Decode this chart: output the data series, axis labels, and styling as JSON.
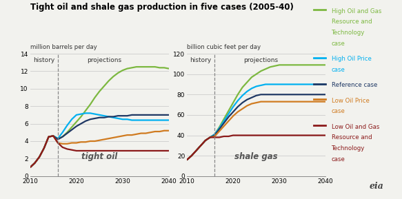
{
  "title": "Tight oil and shale gas production in five cases (2005-40)",
  "left_ylabel": "million barrels per day",
  "right_ylabel": "billion cubic feet per day",
  "left_label": "tight oil",
  "right_label": "shale gas",
  "history_label": "history",
  "projections_label": "projections",
  "history_year": 2016,
  "colors": [
    "#7cb840",
    "#00b0f0",
    "#1f3864",
    "#d07b20",
    "#8b1a1a"
  ],
  "tight_oil": {
    "years": [
      2010,
      2011,
      2012,
      2013,
      2014,
      2015,
      2016,
      2017,
      2018,
      2019,
      2020,
      2021,
      2022,
      2023,
      2024,
      2025,
      2026,
      2027,
      2028,
      2029,
      2030,
      2031,
      2032,
      2033,
      2034,
      2035,
      2036,
      2037,
      2038,
      2039,
      2040
    ],
    "series": {
      "high_og_rt": [
        1.0,
        1.5,
        2.2,
        3.2,
        4.5,
        4.6,
        4.3,
        4.5,
        5.0,
        5.6,
        6.2,
        6.8,
        7.5,
        8.2,
        9.0,
        9.7,
        10.3,
        10.9,
        11.4,
        11.8,
        12.1,
        12.3,
        12.4,
        12.5,
        12.5,
        12.5,
        12.5,
        12.5,
        12.4,
        12.4,
        12.3
      ],
      "high_oil_price": [
        1.0,
        1.5,
        2.2,
        3.2,
        4.5,
        4.6,
        4.3,
        5.0,
        5.8,
        6.5,
        7.0,
        7.1,
        7.2,
        7.2,
        7.1,
        7.0,
        6.9,
        6.8,
        6.7,
        6.6,
        6.5,
        6.5,
        6.4,
        6.4,
        6.4,
        6.4,
        6.4,
        6.4,
        6.4,
        6.4,
        6.4
      ],
      "reference": [
        1.0,
        1.5,
        2.2,
        3.2,
        4.5,
        4.6,
        4.2,
        4.5,
        4.9,
        5.3,
        5.7,
        6.0,
        6.3,
        6.5,
        6.6,
        6.7,
        6.7,
        6.8,
        6.8,
        6.9,
        6.9,
        6.9,
        7.0,
        7.0,
        7.0,
        7.0,
        7.0,
        7.0,
        7.0,
        7.0,
        7.0
      ],
      "low_oil_price": [
        1.0,
        1.5,
        2.2,
        3.2,
        4.5,
        4.6,
        3.8,
        3.7,
        3.7,
        3.8,
        3.8,
        3.9,
        3.9,
        4.0,
        4.0,
        4.1,
        4.2,
        4.3,
        4.4,
        4.5,
        4.6,
        4.7,
        4.7,
        4.8,
        4.9,
        4.9,
        5.0,
        5.1,
        5.1,
        5.2,
        5.2
      ],
      "low_og_rt": [
        1.0,
        1.5,
        2.2,
        3.2,
        4.5,
        4.6,
        3.8,
        3.3,
        3.1,
        3.0,
        2.9,
        2.9,
        2.9,
        2.9,
        2.9,
        2.9,
        2.9,
        2.9,
        2.9,
        2.9,
        2.9,
        2.9,
        2.9,
        2.9,
        2.9,
        2.9,
        2.9,
        2.9,
        2.9,
        2.9,
        2.9
      ]
    },
    "ylim": [
      0,
      14
    ],
    "yticks": [
      0,
      2,
      4,
      6,
      8,
      10,
      12,
      14
    ]
  },
  "shale_gas": {
    "years": [
      2010,
      2011,
      2012,
      2013,
      2014,
      2015,
      2016,
      2017,
      2018,
      2019,
      2020,
      2021,
      2022,
      2023,
      2024,
      2025,
      2026,
      2027,
      2028,
      2029,
      2030,
      2031,
      2032,
      2033,
      2034,
      2035,
      2036,
      2037,
      2038,
      2039,
      2040
    ],
    "series": {
      "high_og_rt": [
        16,
        20,
        25,
        30,
        35,
        38,
        41,
        48,
        56,
        64,
        72,
        80,
        87,
        92,
        97,
        100,
        103,
        105,
        107,
        108,
        109,
        109,
        109,
        109,
        109,
        109,
        109,
        109,
        109,
        109,
        109
      ],
      "high_oil_price": [
        16,
        20,
        25,
        30,
        35,
        38,
        41,
        47,
        54,
        61,
        68,
        74,
        79,
        83,
        86,
        88,
        89,
        90,
        90,
        90,
        90,
        90,
        90,
        90,
        90,
        90,
        90,
        90,
        90,
        90,
        90
      ],
      "reference": [
        16,
        20,
        25,
        30,
        35,
        38,
        40,
        46,
        52,
        58,
        63,
        68,
        72,
        75,
        77,
        79,
        80,
        80,
        80,
        80,
        80,
        80,
        80,
        80,
        80,
        80,
        80,
        80,
        80,
        80,
        80
      ],
      "low_oil_price": [
        16,
        20,
        25,
        30,
        35,
        38,
        39,
        44,
        49,
        54,
        59,
        63,
        66,
        69,
        71,
        72,
        73,
        73,
        73,
        73,
        73,
        73,
        73,
        73,
        73,
        73,
        73,
        73,
        73,
        73,
        73
      ],
      "low_og_rt": [
        16,
        20,
        25,
        30,
        35,
        38,
        38,
        38,
        39,
        39,
        40,
        40,
        40,
        40,
        40,
        40,
        40,
        40,
        40,
        40,
        40,
        40,
        40,
        40,
        40,
        40,
        40,
        40,
        40,
        40,
        40
      ]
    },
    "ylim": [
      0,
      120
    ],
    "yticks": [
      0,
      20,
      40,
      60,
      80,
      100,
      120
    ]
  },
  "legend_entries": [
    {
      "label": [
        "High Oil and Gas",
        "Resource and",
        "Technology",
        "case"
      ],
      "color": "#7cb840"
    },
    {
      "label": [
        "High Oil Price",
        "case"
      ],
      "color": "#00b0f0"
    },
    {
      "label": [
        "Reference case"
      ],
      "color": "#1f3864"
    },
    {
      "label": [
        "Low Oil Price",
        "case"
      ],
      "color": "#d07b20"
    },
    {
      "label": [
        "Low Oil and Gas",
        "Resource and",
        "Technology",
        "case"
      ],
      "color": "#8b1a1a"
    }
  ],
  "bg_color": "#f2f2ee",
  "grid_color": "#cccccc",
  "line_width": 1.6
}
